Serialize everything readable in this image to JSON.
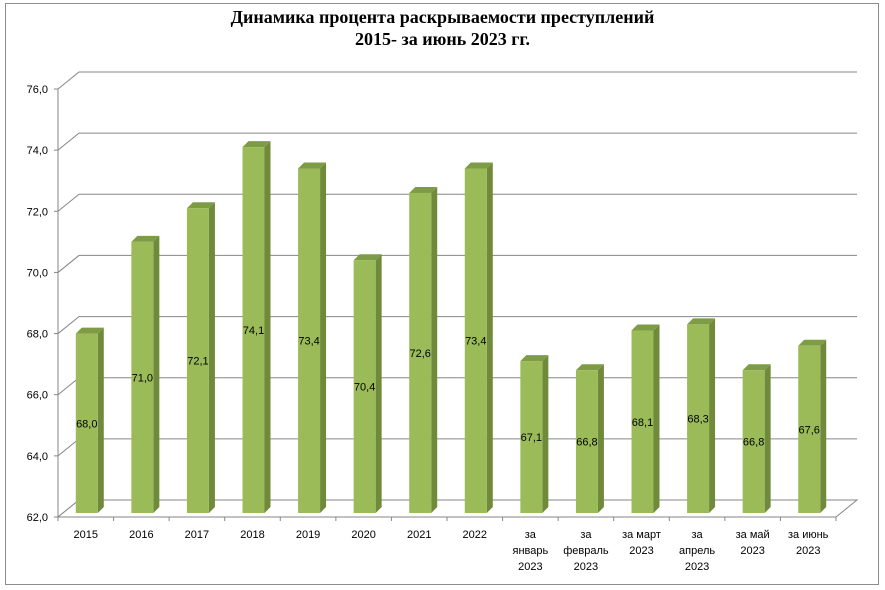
{
  "chart_data": {
    "type": "bar",
    "title_line1": "Динамика процента раскрываемости преступлений",
    "title_line2": "2015- за июнь 2023 гг.",
    "categories": [
      [
        "2015"
      ],
      [
        "2016"
      ],
      [
        "2017"
      ],
      [
        "2018"
      ],
      [
        "2019"
      ],
      [
        "2020"
      ],
      [
        "2021"
      ],
      [
        "2022"
      ],
      [
        "за",
        "январь",
        "2023"
      ],
      [
        "за",
        "февраль",
        "2023"
      ],
      [
        "за март",
        "2023"
      ],
      [
        "за",
        "апрель",
        "2023"
      ],
      [
        "за май",
        "2023"
      ],
      [
        "за июнь",
        "2023"
      ]
    ],
    "values": [
      68.0,
      71.0,
      72.1,
      74.1,
      73.4,
      70.4,
      72.6,
      73.4,
      67.1,
      66.8,
      68.1,
      68.3,
      66.8,
      67.6
    ],
    "data_labels": [
      "68,0",
      "71,0",
      "72,1",
      "74,1",
      "73,4",
      "70,4",
      "72,6",
      "73,4",
      "67,1",
      "66,8",
      "68,1",
      "68,3",
      "66,8",
      "67,6"
    ],
    "y_ticks": [
      "62,0",
      "64,0",
      "66,0",
      "68,0",
      "70,0",
      "72,0",
      "74,0",
      "76,0"
    ],
    "ylim": [
      62,
      76
    ],
    "grid": true,
    "legend": "none",
    "colors": {
      "bar_front": "#9bbb59",
      "bar_side": "#6f8a3a",
      "bar_top": "#7e9c45",
      "grid": "#868686",
      "wall": "#ffffff"
    }
  }
}
